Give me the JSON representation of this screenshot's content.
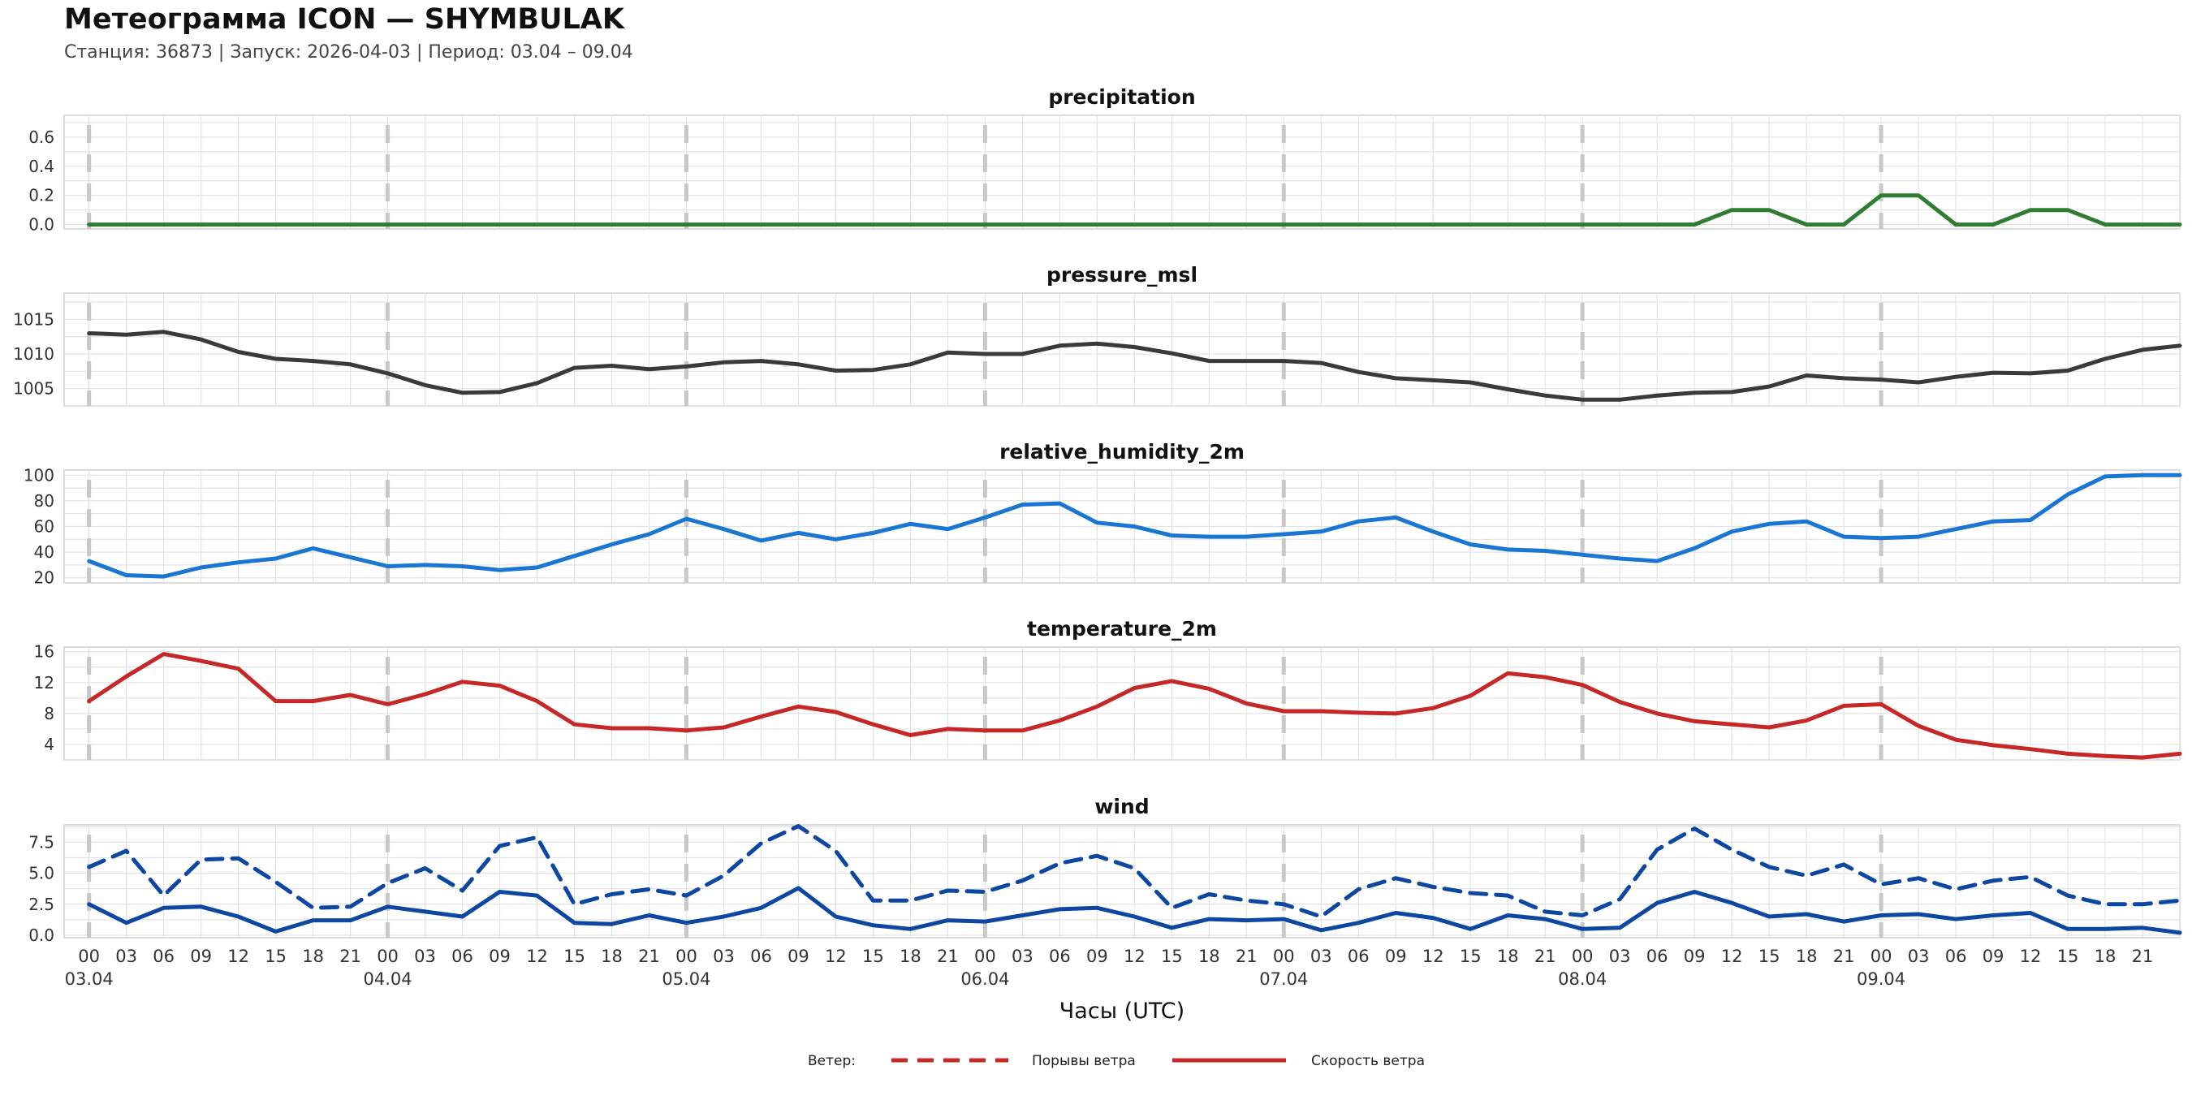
{
  "header": {
    "title": "Метеограмма ICON — SHYMBULAK",
    "subtitle": "Станция: 36873  | Запуск: 2026-04-03  | Период: 03.04 – 09.04"
  },
  "colors": {
    "precipitation": "#2e7d32",
    "pressure_msl": "#3a3a3a",
    "relative_humidity_2m": "#1976d2",
    "temperature_2m": "#c62828",
    "wind": "#0d47a1",
    "legend_red": "#c62828",
    "day_separator": "#c8c8c8",
    "grid": "#e3e3e3"
  },
  "chart_data": [
    {
      "type": "line",
      "title": "precipitation",
      "ylim": [
        -0.03,
        0.75
      ],
      "yticks": [
        0.0,
        0.2,
        0.4,
        0.6
      ],
      "ytick_labels": [
        "0.0",
        "0.2",
        "0.4",
        "0.6"
      ],
      "series": [
        {
          "x": [
            0,
            3,
            6,
            9,
            12,
            15,
            18,
            21,
            24,
            27,
            30,
            33,
            36,
            39,
            42,
            45,
            48,
            51,
            54,
            57,
            60,
            63,
            66,
            69,
            72,
            75,
            78,
            81,
            84,
            87,
            90,
            93,
            96,
            99,
            102,
            105,
            108,
            111,
            114,
            117,
            120,
            123,
            126,
            129,
            132,
            135,
            138,
            141,
            144,
            147,
            150,
            153,
            156,
            159,
            162,
            165,
            168
          ],
          "y": [
            0,
            0,
            0,
            0,
            0,
            0,
            0,
            0,
            0,
            0,
            0,
            0,
            0,
            0,
            0,
            0,
            0,
            0,
            0,
            0,
            0,
            0,
            0,
            0,
            0,
            0,
            0,
            0,
            0,
            0,
            0,
            0,
            0,
            0,
            0,
            0,
            0,
            0,
            0,
            0,
            0,
            0,
            0,
            0,
            0.1,
            0.1,
            0,
            0,
            0.2,
            0.2,
            0,
            0,
            0.1,
            0.1,
            0,
            0,
            0
          ]
        }
      ]
    },
    {
      "type": "line",
      "title": "pressure_msl",
      "ylim": [
        1002.5,
        1018.8
      ],
      "yticks": [
        1005,
        1010,
        1015
      ],
      "ytick_labels": [
        "1005",
        "1010",
        "1015"
      ],
      "series": [
        {
          "x": [
            0,
            3,
            6,
            9,
            12,
            15,
            18,
            21,
            24,
            27,
            30,
            33,
            36,
            39,
            42,
            45,
            48,
            51,
            54,
            57,
            60,
            63,
            66,
            69,
            72,
            75,
            78,
            81,
            84,
            87,
            90,
            93,
            96,
            99,
            102,
            105,
            108,
            111,
            114,
            117,
            120,
            123,
            126,
            129,
            132,
            135,
            138,
            141,
            144,
            147,
            150,
            153,
            156,
            159,
            162,
            165,
            168
          ],
          "y": [
            1013,
            1012.8,
            1013.2,
            1012.1,
            1010.3,
            1009.3,
            1009,
            1008.5,
            1007.2,
            1005.5,
            1004.4,
            1004.5,
            1005.8,
            1008,
            1008.3,
            1007.8,
            1008.2,
            1008.8,
            1009,
            1008.5,
            1007.6,
            1007.7,
            1008.5,
            1010.2,
            1010,
            1010,
            1011.2,
            1011.5,
            1011,
            1010.1,
            1009,
            1009,
            1009,
            1008.7,
            1007.4,
            1006.5,
            1006.2,
            1005.9,
            1004.9,
            1004,
            1003.4,
            1003.4,
            1004,
            1004.4,
            1004.5,
            1005.3,
            1006.9,
            1006.5,
            1006.3,
            1005.9,
            1006.7,
            1007.3,
            1007.2,
            1007.6,
            1009.3,
            1010.6,
            1011.2
          ]
        }
      ]
    },
    {
      "type": "line",
      "title": "relative_humidity_2m",
      "ylim": [
        16,
        104
      ],
      "yticks": [
        20,
        40,
        60,
        80,
        100
      ],
      "ytick_labels": [
        "20",
        "40",
        "60",
        "80",
        "100"
      ],
      "series": [
        {
          "x": [
            0,
            3,
            6,
            9,
            12,
            15,
            18,
            21,
            24,
            27,
            30,
            33,
            36,
            39,
            42,
            45,
            48,
            51,
            54,
            57,
            60,
            63,
            66,
            69,
            72,
            75,
            78,
            81,
            84,
            87,
            90,
            93,
            96,
            99,
            102,
            105,
            108,
            111,
            114,
            117,
            120,
            123,
            126,
            129,
            132,
            135,
            138,
            141,
            144,
            147,
            150,
            153,
            156,
            159,
            162,
            165,
            168
          ],
          "y": [
            33,
            22,
            21,
            28,
            32,
            35,
            43,
            36,
            29,
            30,
            29,
            26,
            28,
            37,
            46,
            54,
            66,
            58,
            49,
            55,
            50,
            55,
            62,
            58,
            67,
            77,
            78,
            63,
            60,
            53,
            52,
            52,
            54,
            56,
            64,
            67,
            56,
            46,
            42,
            41,
            38,
            35,
            33,
            43,
            56,
            62,
            64,
            52,
            51,
            52,
            58,
            64,
            65,
            85,
            99,
            100,
            100
          ]
        }
      ]
    },
    {
      "type": "line",
      "title": "temperature_2m",
      "ylim": [
        2,
        16.6
      ],
      "yticks": [
        4,
        8,
        12,
        16
      ],
      "ytick_labels": [
        "4",
        "8",
        "12",
        "16"
      ],
      "series": [
        {
          "x": [
            0,
            3,
            6,
            9,
            12,
            15,
            18,
            21,
            24,
            27,
            30,
            33,
            36,
            39,
            42,
            45,
            48,
            51,
            54,
            57,
            60,
            63,
            66,
            69,
            72,
            75,
            78,
            81,
            84,
            87,
            90,
            93,
            96,
            99,
            102,
            105,
            108,
            111,
            114,
            117,
            120,
            123,
            126,
            129,
            132,
            135,
            138,
            141,
            144,
            147,
            150,
            153,
            156,
            159,
            162,
            165,
            168
          ],
          "y": [
            9.6,
            12.8,
            15.7,
            14.8,
            13.8,
            9.6,
            9.6,
            10.4,
            9.2,
            10.5,
            12.1,
            11.6,
            9.6,
            6.6,
            6.1,
            6.1,
            5.8,
            6.2,
            7.6,
            8.9,
            8.2,
            6.6,
            5.2,
            6,
            5.8,
            5.8,
            7.1,
            8.9,
            11.3,
            12.2,
            11.2,
            9.3,
            8.3,
            8.3,
            8.1,
            8,
            8.7,
            10.3,
            13.2,
            12.7,
            11.7,
            9.5,
            8,
            7,
            6.6,
            6.2,
            7.1,
            9,
            9.2,
            6.4,
            4.6,
            3.9,
            3.4,
            2.8,
            2.5,
            2.3,
            2.8
          ]
        }
      ]
    },
    {
      "type": "line",
      "title": "wind",
      "ylim": [
        -0.2,
        8.9
      ],
      "yticks": [
        0.0,
        2.5,
        5.0,
        7.5
      ],
      "ytick_labels": [
        "0.0",
        "2.5",
        "5.0",
        "7.5"
      ],
      "series": [
        {
          "name": "Порывы ветра",
          "style": "dashed",
          "x": [
            0,
            3,
            6,
            9,
            12,
            15,
            18,
            21,
            24,
            27,
            30,
            33,
            36,
            39,
            42,
            45,
            48,
            51,
            54,
            57,
            60,
            63,
            66,
            69,
            72,
            75,
            78,
            81,
            84,
            87,
            90,
            93,
            96,
            99,
            102,
            105,
            108,
            111,
            114,
            117,
            120,
            123,
            126,
            129,
            132,
            135,
            138,
            141,
            144,
            147,
            150,
            153,
            156,
            159,
            162,
            165,
            168
          ],
          "y": [
            5.5,
            6.8,
            3.2,
            6.1,
            6.2,
            4.3,
            2.2,
            2.3,
            4.2,
            5.4,
            3.6,
            7.2,
            7.9,
            2.5,
            3.3,
            3.7,
            3.2,
            4.8,
            7.4,
            8.8,
            6.8,
            2.8,
            2.8,
            3.6,
            3.5,
            4.4,
            5.8,
            6.4,
            5.4,
            2.2,
            3.3,
            2.8,
            2.5,
            1.5,
            3.7,
            4.6,
            3.9,
            3.4,
            3.2,
            1.9,
            1.6,
            2.9,
            6.9,
            8.6,
            6.9,
            5.5,
            4.8,
            5.7,
            4.1,
            4.6,
            3.7,
            4.4,
            4.7,
            3.2,
            2.5,
            2.5,
            2.8
          ]
        },
        {
          "name": "Скорость ветра",
          "style": "solid",
          "x": [
            0,
            3,
            6,
            9,
            12,
            15,
            18,
            21,
            24,
            27,
            30,
            33,
            36,
            39,
            42,
            45,
            48,
            51,
            54,
            57,
            60,
            63,
            66,
            69,
            72,
            75,
            78,
            81,
            84,
            87,
            90,
            93,
            96,
            99,
            102,
            105,
            108,
            111,
            114,
            117,
            120,
            123,
            126,
            129,
            132,
            135,
            138,
            141,
            144,
            147,
            150,
            153,
            156,
            159,
            162,
            165,
            168
          ],
          "y": [
            2.5,
            1,
            2.2,
            2.3,
            1.5,
            0.3,
            1.2,
            1.2,
            2.3,
            1.9,
            1.5,
            3.5,
            3.2,
            1,
            0.9,
            1.6,
            1,
            1.5,
            2.2,
            3.8,
            1.5,
            0.8,
            0.5,
            1.2,
            1.1,
            1.6,
            2.1,
            2.2,
            1.5,
            0.6,
            1.3,
            1.2,
            1.3,
            0.4,
            1,
            1.8,
            1.4,
            0.5,
            1.6,
            1.3,
            0.5,
            0.6,
            2.6,
            3.5,
            2.6,
            1.5,
            1.7,
            1.1,
            1.6,
            1.7,
            1.3,
            1.6,
            1.8,
            0.5,
            0.5,
            0.6,
            0.2
          ]
        }
      ]
    }
  ],
  "x_axis": {
    "label": "Часы (UTC)",
    "hour_ticks": [
      "00",
      "03",
      "06",
      "09",
      "12",
      "15",
      "18",
      "21"
    ],
    "days": [
      "03.04",
      "04.04",
      "05.04",
      "06.04",
      "07.04",
      "08.04",
      "09.04"
    ],
    "range_hours": [
      -2,
      168
    ]
  },
  "legend": {
    "prefix": "Ветер:",
    "items": [
      {
        "label": "Порывы ветра",
        "style": "dashed"
      },
      {
        "label": "Скорость ветра",
        "style": "solid"
      }
    ]
  }
}
